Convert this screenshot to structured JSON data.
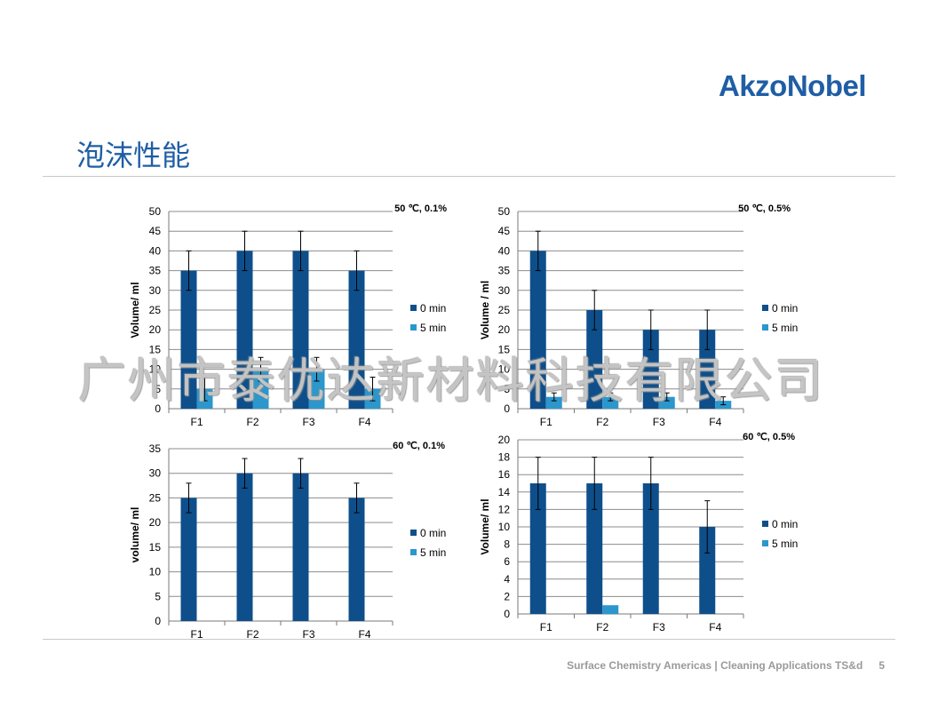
{
  "brand": {
    "logo_text": "AkzoNobel",
    "color": "#1f5ea5"
  },
  "page": {
    "title": "泡沫性能"
  },
  "footer": {
    "text": "Surface Chemistry Americas | Cleaning Applications TS&d",
    "page_number": "5"
  },
  "watermark": {
    "text": "广州市泰优达新材料科技有限公司"
  },
  "colors": {
    "series_0min": "#0e4f8b",
    "series_5min": "#2b97cc",
    "grid": "#8c8c8c"
  },
  "chart_data": [
    {
      "type": "bar",
      "title": "50 ℃, 0.1%",
      "xlabel": "",
      "ylabel": "Volume/ ml",
      "ylim": [
        0,
        50
      ],
      "ytick_step": 5,
      "categories": [
        "F1",
        "F2",
        "F3",
        "F4"
      ],
      "series": [
        {
          "name": "0 min",
          "values": [
            35,
            40,
            40,
            35
          ],
          "errors": [
            5,
            5,
            5,
            5
          ]
        },
        {
          "name": "5 min",
          "values": [
            5,
            10,
            10,
            5
          ],
          "errors": [
            3,
            3,
            3,
            3
          ]
        }
      ],
      "legend": "right"
    },
    {
      "type": "bar",
      "title": "50 ℃, 0.5%",
      "xlabel": "",
      "ylabel": "Volume / ml",
      "ylim": [
        0,
        50
      ],
      "ytick_step": 5,
      "categories": [
        "F1",
        "F2",
        "F3",
        "F4"
      ],
      "series": [
        {
          "name": "0 min",
          "values": [
            40,
            25,
            20,
            20
          ],
          "errors": [
            5,
            5,
            5,
            5
          ]
        },
        {
          "name": "5 min",
          "values": [
            3,
            3,
            3,
            2
          ],
          "errors": [
            1,
            1,
            1,
            1
          ]
        }
      ],
      "legend": "right"
    },
    {
      "type": "bar",
      "title": "60 ℃, 0.1%",
      "xlabel": "",
      "ylabel": "volume/ ml",
      "ylim": [
        0,
        35
      ],
      "ytick_step": 5,
      "categories": [
        "F1",
        "F2",
        "F3",
        "F4"
      ],
      "series": [
        {
          "name": "0 min",
          "values": [
            25,
            30,
            30,
            25
          ],
          "errors": [
            3,
            3,
            3,
            3
          ]
        },
        {
          "name": "5 min",
          "values": [
            0,
            0,
            0,
            0
          ],
          "errors": [
            0,
            0,
            0,
            0
          ]
        }
      ],
      "legend": "right"
    },
    {
      "type": "bar",
      "title": "60 ℃, 0.5%",
      "xlabel": "",
      "ylabel": "Volume/ ml",
      "ylim": [
        0,
        20
      ],
      "ytick_step": 2,
      "categories": [
        "F1",
        "F2",
        "F3",
        "F4"
      ],
      "series": [
        {
          "name": "0 min",
          "values": [
            15,
            15,
            15,
            10
          ],
          "errors": [
            3,
            3,
            3,
            3
          ]
        },
        {
          "name": "5 min",
          "values": [
            0,
            1,
            0,
            0
          ],
          "errors": [
            0,
            0,
            0,
            0
          ]
        }
      ],
      "legend": "right"
    }
  ]
}
